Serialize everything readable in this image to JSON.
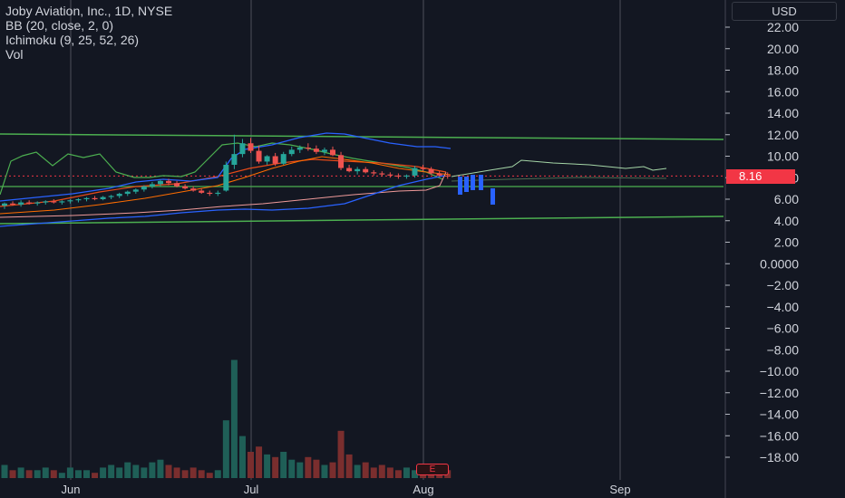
{
  "legend": {
    "symbol": "Joby Aviation, Inc., 1D, NYSE",
    "bb": "BB (20, close, 2, 0)",
    "ichimoku": "Ichimoku (9, 25, 52, 26)",
    "vol": "Vol"
  },
  "currency": "USD",
  "last_price_label": "8.16",
  "earnings_marker": "E",
  "colors": {
    "background": "#131722",
    "up": "#26a69a",
    "down": "#ef5350",
    "bb_band": "#2962ff",
    "ichimoku_span": "#4caf50",
    "trendline": "#4caf50",
    "price_line": "#f23645"
  },
  "chart_data": {
    "type": "candlestick",
    "y_axis": {
      "ticks": [
        "22.00",
        "20.00",
        "18.00",
        "16.00",
        "14.00",
        "12.00",
        "10.00",
        "8.00",
        "6.00",
        "4.00",
        "2.00",
        "0.0000",
        "−2.00",
        "−4.00",
        "−6.00",
        "−8.00",
        "−10.00",
        "−12.00",
        "−14.00",
        "−16.00",
        "−18.00"
      ],
      "range": [
        -19.5,
        23.2
      ]
    },
    "x_axis": {
      "ticks": [
        "Jun",
        "Jul",
        "Aug",
        "Sep"
      ]
    },
    "last_price": 8.16,
    "candles": [
      {
        "o": 5.4,
        "h": 5.7,
        "l": 5.1,
        "c": 5.6
      },
      {
        "o": 5.6,
        "h": 5.8,
        "l": 5.4,
        "c": 5.5
      },
      {
        "o": 5.5,
        "h": 5.9,
        "l": 5.3,
        "c": 5.7
      },
      {
        "o": 5.7,
        "h": 5.9,
        "l": 5.5,
        "c": 5.6
      },
      {
        "o": 5.6,
        "h": 5.8,
        "l": 5.4,
        "c": 5.7
      },
      {
        "o": 5.7,
        "h": 5.9,
        "l": 5.5,
        "c": 5.8
      },
      {
        "o": 5.8,
        "h": 6.0,
        "l": 5.6,
        "c": 5.7
      },
      {
        "o": 5.7,
        "h": 5.9,
        "l": 5.5,
        "c": 5.8
      },
      {
        "o": 5.8,
        "h": 6.0,
        "l": 5.6,
        "c": 5.9
      },
      {
        "o": 5.9,
        "h": 6.1,
        "l": 5.7,
        "c": 6.0
      },
      {
        "o": 6.0,
        "h": 6.2,
        "l": 5.8,
        "c": 6.1
      },
      {
        "o": 6.1,
        "h": 6.3,
        "l": 5.9,
        "c": 6.0
      },
      {
        "o": 6.0,
        "h": 6.3,
        "l": 5.9,
        "c": 6.2
      },
      {
        "o": 6.2,
        "h": 6.4,
        "l": 6.0,
        "c": 6.3
      },
      {
        "o": 6.3,
        "h": 6.6,
        "l": 6.1,
        "c": 6.5
      },
      {
        "o": 6.5,
        "h": 6.8,
        "l": 6.3,
        "c": 6.7
      },
      {
        "o": 6.7,
        "h": 7.0,
        "l": 6.5,
        "c": 6.9
      },
      {
        "o": 6.9,
        "h": 7.3,
        "l": 6.7,
        "c": 7.2
      },
      {
        "o": 7.2,
        "h": 7.6,
        "l": 7.0,
        "c": 7.4
      },
      {
        "o": 7.4,
        "h": 7.8,
        "l": 7.2,
        "c": 7.7
      },
      {
        "o": 7.7,
        "h": 7.9,
        "l": 7.3,
        "c": 7.5
      },
      {
        "o": 7.5,
        "h": 7.7,
        "l": 7.1,
        "c": 7.2
      },
      {
        "o": 7.2,
        "h": 7.4,
        "l": 6.9,
        "c": 7.0
      },
      {
        "o": 7.0,
        "h": 7.2,
        "l": 6.7,
        "c": 6.8
      },
      {
        "o": 6.8,
        "h": 7.0,
        "l": 6.5,
        "c": 6.6
      },
      {
        "o": 6.6,
        "h": 6.8,
        "l": 6.3,
        "c": 6.5
      },
      {
        "o": 6.5,
        "h": 6.8,
        "l": 6.3,
        "c": 6.6
      },
      {
        "o": 6.8,
        "h": 9.5,
        "l": 6.7,
        "c": 9.2
      },
      {
        "o": 9.2,
        "h": 12.0,
        "l": 8.8,
        "c": 10.2
      },
      {
        "o": 10.2,
        "h": 11.6,
        "l": 9.9,
        "c": 11.2
      },
      {
        "o": 11.2,
        "h": 11.7,
        "l": 10.3,
        "c": 10.5
      },
      {
        "o": 10.5,
        "h": 11.0,
        "l": 9.3,
        "c": 9.5
      },
      {
        "o": 9.5,
        "h": 10.1,
        "l": 9.2,
        "c": 10.0
      },
      {
        "o": 10.0,
        "h": 10.3,
        "l": 9.1,
        "c": 9.3
      },
      {
        "o": 9.3,
        "h": 10.4,
        "l": 9.2,
        "c": 10.2
      },
      {
        "o": 10.2,
        "h": 10.9,
        "l": 10.0,
        "c": 10.6
      },
      {
        "o": 10.6,
        "h": 11.0,
        "l": 10.3,
        "c": 10.8
      },
      {
        "o": 10.8,
        "h": 11.2,
        "l": 10.5,
        "c": 10.7
      },
      {
        "o": 10.7,
        "h": 11.0,
        "l": 10.2,
        "c": 10.4
      },
      {
        "o": 10.4,
        "h": 10.8,
        "l": 10.1,
        "c": 10.6
      },
      {
        "o": 10.6,
        "h": 10.9,
        "l": 10.0,
        "c": 10.1
      },
      {
        "o": 10.1,
        "h": 10.4,
        "l": 8.7,
        "c": 8.9
      },
      {
        "o": 8.9,
        "h": 9.2,
        "l": 8.5,
        "c": 8.6
      },
      {
        "o": 8.6,
        "h": 9.0,
        "l": 8.3,
        "c": 8.8
      },
      {
        "o": 8.8,
        "h": 9.0,
        "l": 8.4,
        "c": 8.5
      },
      {
        "o": 8.5,
        "h": 8.7,
        "l": 8.2,
        "c": 8.4
      },
      {
        "o": 8.4,
        "h": 8.6,
        "l": 8.1,
        "c": 8.3
      },
      {
        "o": 8.3,
        "h": 8.5,
        "l": 8.0,
        "c": 8.2
      },
      {
        "o": 8.2,
        "h": 8.4,
        "l": 7.9,
        "c": 8.1
      },
      {
        "o": 8.1,
        "h": 8.3,
        "l": 7.9,
        "c": 8.2
      },
      {
        "o": 8.2,
        "h": 9.1,
        "l": 8.0,
        "c": 8.9
      },
      {
        "o": 8.9,
        "h": 9.2,
        "l": 8.6,
        "c": 8.8
      },
      {
        "o": 8.8,
        "h": 9.0,
        "l": 8.3,
        "c": 8.4
      },
      {
        "o": 8.4,
        "h": 8.6,
        "l": 8.1,
        "c": 8.2
      },
      {
        "o": 8.2,
        "h": 8.5,
        "l": 7.9,
        "c": 8.16
      }
    ],
    "volume": [
      5,
      3,
      4,
      3,
      3,
      4,
      3,
      2,
      4,
      3,
      3,
      2,
      4,
      5,
      4,
      6,
      5,
      4,
      6,
      7,
      5,
      4,
      3,
      4,
      3,
      2,
      3,
      22,
      45,
      16,
      10,
      12,
      9,
      8,
      10,
      7,
      6,
      8,
      7,
      5,
      6,
      18,
      9,
      5,
      6,
      4,
      5,
      4,
      3,
      4,
      3,
      3,
      4,
      2,
      3
    ]
  }
}
